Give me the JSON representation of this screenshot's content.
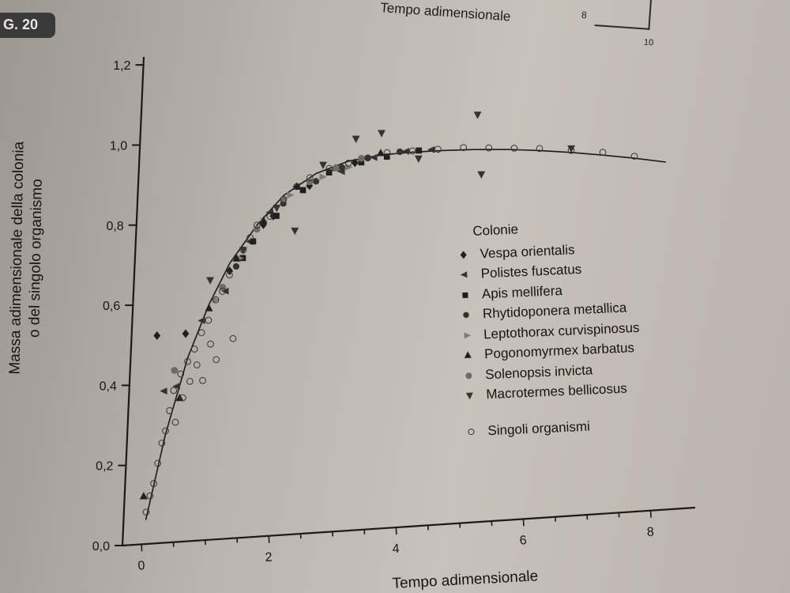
{
  "figure": {
    "tag": "G. 20",
    "top_label": "Tempo adimensionale",
    "top_tick_labels": [
      "8",
      "10"
    ]
  },
  "chart_data": {
    "type": "scatter",
    "xlabel": "Tempo adimensionale",
    "ylabel_lines": [
      "Massa adimensionale della colonia",
      "o del singolo organismo"
    ],
    "x_ticks": [
      "0",
      "2",
      "4",
      "6",
      "8"
    ],
    "y_ticks": [
      "0,0",
      "0,2",
      "0,4",
      "0,6",
      "0,8",
      "1,0",
      "1,2"
    ],
    "xlim": [
      -0.3,
      8.7
    ],
    "ylim": [
      0,
      1.22
    ],
    "grid": false,
    "legend_position": "center-right",
    "legend_title": "Colonie",
    "fit_curve": {
      "x": [
        0.05,
        0.3,
        0.6,
        0.9,
        1.2,
        1.6,
        2.0,
        2.5,
        3.0,
        3.5,
        4.0,
        4.5,
        5.0,
        5.5,
        6.0,
        6.5,
        7.0,
        7.5,
        8.0
      ],
      "y": [
        0.06,
        0.27,
        0.46,
        0.59,
        0.69,
        0.78,
        0.85,
        0.9,
        0.925,
        0.935,
        0.937,
        0.936,
        0.933,
        0.928,
        0.92,
        0.91,
        0.898,
        0.885,
        0.87
      ]
    },
    "series": [
      {
        "name": "Vespa orientalis",
        "marker": "diamond-filled",
        "x": [
          0.1,
          0.55,
          1.2,
          1.7,
          1.85,
          2.4,
          3.1
        ],
        "y": [
          0.52,
          0.52,
          0.67,
          0.78,
          0.8,
          0.87,
          0.92
        ]
      },
      {
        "name": "Polistes fuscatus",
        "marker": "triangle-left",
        "x": [
          0.25,
          0.45,
          0.8,
          1.15,
          1.5,
          1.8,
          2.2,
          2.9,
          3.4,
          3.9,
          4.3
        ],
        "y": [
          0.38,
          0.39,
          0.55,
          0.62,
          0.74,
          0.81,
          0.87,
          0.9,
          0.93,
          0.94,
          0.94
        ]
      },
      {
        "name": "Apis mellifera",
        "marker": "square-filled",
        "x": [
          1.4,
          1.55,
          1.9,
          2.3,
          2.7,
          3.2,
          3.6,
          4.1
        ],
        "y": [
          0.7,
          0.74,
          0.8,
          0.86,
          0.9,
          0.92,
          0.93,
          0.94
        ]
      },
      {
        "name": "Rhytidoponera metallica",
        "marker": "circle-filled",
        "x": [
          1.3,
          1.6,
          2.0,
          2.5,
          2.9,
          3.3,
          3.8
        ],
        "y": [
          0.68,
          0.77,
          0.83,
          0.88,
          0.91,
          0.93,
          0.94
        ]
      },
      {
        "name": "Leptothorax curvispinosus",
        "marker": "triangle-right",
        "x": [
          1.0,
          1.35,
          1.7,
          2.1,
          2.6,
          3.0
        ],
        "y": [
          0.6,
          0.7,
          0.79,
          0.85,
          0.89,
          0.91
        ]
      },
      {
        "name": "Pogonomyrmex barbatus",
        "marker": "triangle-up",
        "x": [
          0.0,
          0.5,
          0.9,
          1.3,
          1.7,
          2.2,
          2.8,
          3.5
        ],
        "y": [
          0.12,
          0.36,
          0.58,
          0.7,
          0.79,
          0.87,
          0.91,
          0.94
        ]
      },
      {
        "name": "Solenopsis invicta",
        "marker": "circle-gray",
        "x": [
          0.4,
          1.1,
          1.6,
          2.0,
          2.4,
          2.8,
          3.2
        ],
        "y": [
          0.43,
          0.63,
          0.77,
          0.84,
          0.88,
          0.91,
          0.93
        ]
      },
      {
        "name": "Macrotermes bellicosus",
        "marker": "triangle-down",
        "x": [
          0.9,
          1.4,
          1.9,
          2.2,
          2.6,
          3.1,
          3.5,
          4.1,
          5.0,
          5.1,
          6.5
        ],
        "y": [
          0.65,
          0.72,
          0.82,
          0.76,
          0.92,
          0.98,
          0.99,
          0.92,
          1.02,
          0.87,
          0.92
        ]
      },
      {
        "name": "Singoli organismi",
        "marker": "circle-open",
        "x": [
          0.05,
          0.1,
          0.15,
          0.2,
          0.25,
          0.3,
          0.35,
          0.4,
          0.45,
          0.5,
          0.55,
          0.6,
          0.65,
          0.7,
          0.75,
          0.8,
          0.85,
          0.9,
          0.95,
          1.0,
          1.05,
          1.1,
          1.2,
          1.3,
          1.4,
          1.5,
          1.6,
          1.8,
          2.0,
          2.2,
          2.4,
          2.7,
          3.0,
          3.3,
          3.6,
          4.0,
          4.4,
          4.8,
          5.2,
          5.6,
          6.0,
          6.5,
          7.0,
          7.5
        ],
        "y": [
          0.08,
          0.12,
          0.15,
          0.2,
          0.25,
          0.28,
          0.33,
          0.38,
          0.3,
          0.42,
          0.36,
          0.45,
          0.4,
          0.48,
          0.44,
          0.52,
          0.4,
          0.55,
          0.49,
          0.6,
          0.45,
          0.62,
          0.66,
          0.5,
          0.72,
          0.75,
          0.78,
          0.8,
          0.84,
          0.87,
          0.89,
          0.91,
          0.92,
          0.93,
          0.94,
          0.94,
          0.94,
          0.94,
          0.935,
          0.93,
          0.925,
          0.915,
          0.905,
          0.89
        ]
      }
    ]
  }
}
